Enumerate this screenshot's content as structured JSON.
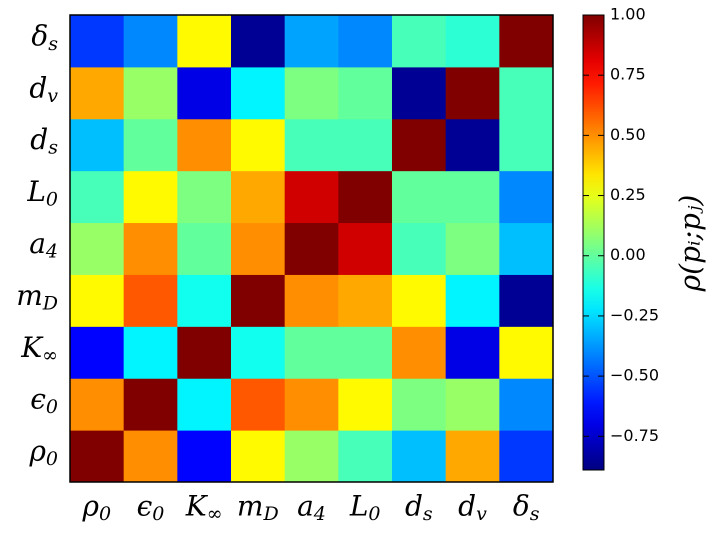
{
  "chart_data": {
    "type": "heatmap",
    "categories": [
      "ρ0",
      "ϵ0",
      "K∞",
      "mD",
      "a4",
      "L0",
      "ds",
      "dv",
      "δs"
    ],
    "z": [
      [
        1.0,
        0.5,
        -0.65,
        0.3,
        0.1,
        -0.05,
        -0.3,
        0.45,
        -0.55
      ],
      [
        0.5,
        1.0,
        -0.2,
        0.6,
        0.5,
        0.3,
        0.05,
        0.1,
        -0.4
      ],
      [
        -0.65,
        -0.2,
        1.0,
        -0.15,
        0.0,
        0.0,
        0.5,
        -0.7,
        0.3
      ],
      [
        0.3,
        0.6,
        -0.15,
        1.0,
        0.5,
        0.45,
        0.3,
        -0.2,
        -0.85
      ],
      [
        0.1,
        0.5,
        0.0,
        0.5,
        1.0,
        0.85,
        -0.05,
        0.05,
        -0.3
      ],
      [
        -0.05,
        0.3,
        0.05,
        0.45,
        0.85,
        1.0,
        0.0,
        0.0,
        -0.4
      ],
      [
        -0.3,
        0.0,
        0.5,
        0.3,
        -0.05,
        -0.05,
        1.0,
        -0.85,
        -0.05
      ],
      [
        0.45,
        0.1,
        -0.7,
        -0.2,
        0.05,
        0.0,
        -0.85,
        1.0,
        -0.05
      ],
      [
        -0.55,
        -0.4,
        0.3,
        -0.85,
        -0.35,
        -0.4,
        -0.05,
        -0.1,
        1.0
      ]
    ],
    "colormap": "jet",
    "zlim": [
      -0.89,
      1.0
    ],
    "colorbar_ticks": [
      {
        "value": -0.75,
        "label": "−0.75"
      },
      {
        "value": -0.5,
        "label": "−0.50"
      },
      {
        "value": -0.25,
        "label": "−0.25"
      },
      {
        "value": 0,
        "label": "0.00"
      },
      {
        "value": 0.25,
        "label": "0.25"
      },
      {
        "value": 0.5,
        "label": "0.50"
      },
      {
        "value": 0.75,
        "label": "0.75"
      },
      {
        "value": 1.0,
        "label": "1.00"
      }
    ],
    "colorbar_label": "ρ(pᵢ;pⱼ)"
  }
}
